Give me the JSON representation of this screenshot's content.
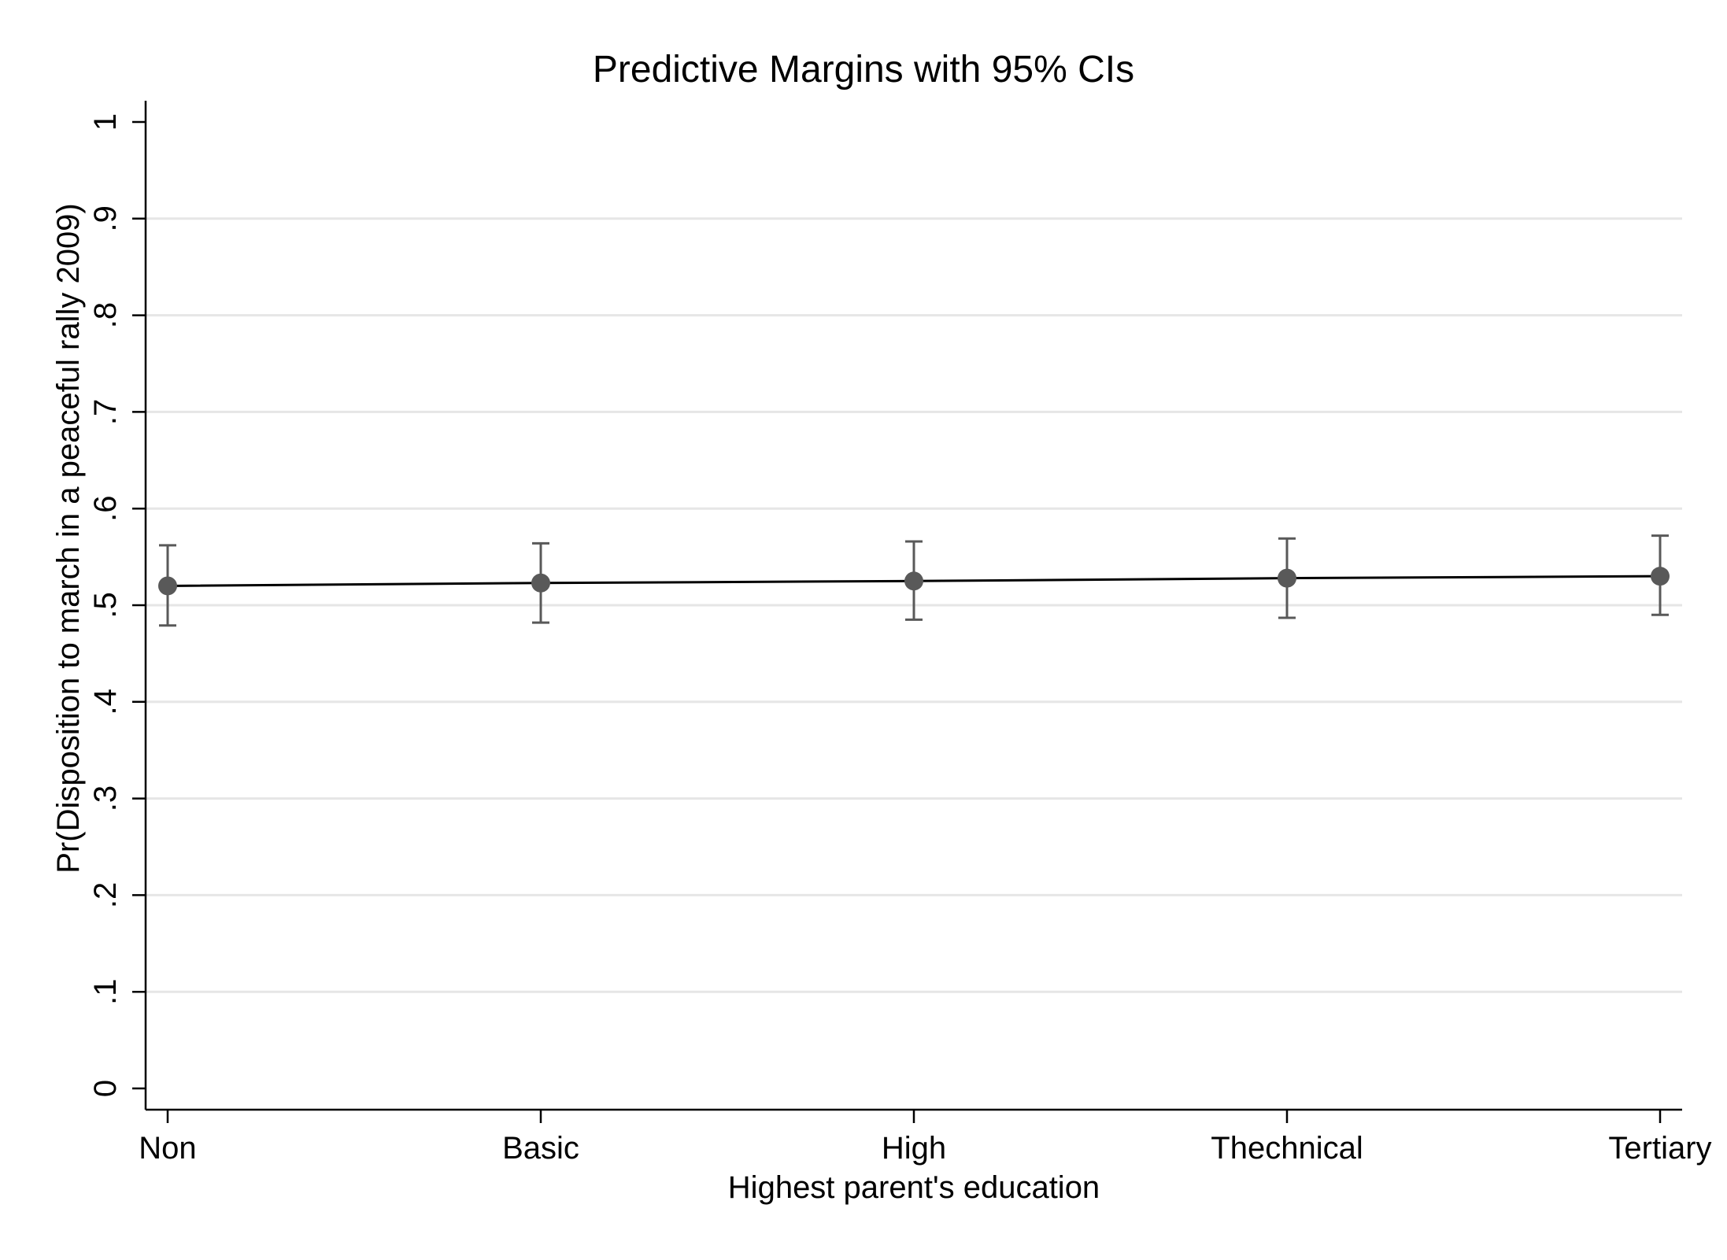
{
  "chart_data": {
    "type": "line",
    "title": "Predictive Margins with 95% CIs",
    "xlabel": "Highest parent's education",
    "ylabel": "Pr(Disposition to march in a peaceful rally 2009)",
    "categories": [
      "Non",
      "Basic",
      "High",
      "Thechnical",
      "Tertiary"
    ],
    "series": [
      {
        "values": [
          0.52,
          0.523,
          0.525,
          0.528,
          0.53
        ],
        "ci_lower": [
          0.479,
          0.482,
          0.485,
          0.487,
          0.49
        ],
        "ci_upper": [
          0.562,
          0.564,
          0.566,
          0.569,
          0.572
        ]
      }
    ],
    "yticks": [
      0,
      0.1,
      0.2,
      0.3,
      0.4,
      0.5,
      0.6,
      0.7,
      0.8,
      0.9,
      1
    ],
    "ytick_labels": [
      "0",
      ".1",
      ".2",
      ".3",
      ".4",
      ".5",
      ".6",
      ".7",
      ".8",
      ".9",
      "1"
    ],
    "ylim": [
      0,
      1
    ],
    "grid": true,
    "legend": "none",
    "colors": {
      "line": "#000000",
      "marker": "#595959",
      "ci": "#595959",
      "grid": "#e6e6e6",
      "axis": "#000000"
    }
  }
}
